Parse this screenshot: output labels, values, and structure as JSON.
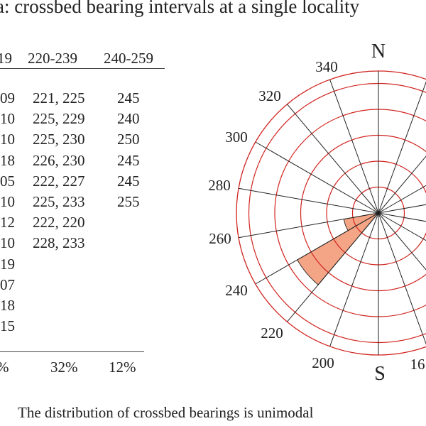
{
  "title": "a: crossbed bearing intervals at a single locality",
  "table": {
    "headers": [
      "19",
      "220-239",
      "240-259"
    ],
    "columns": [
      [
        "09",
        "10",
        "10",
        "18",
        "05",
        "10",
        "12",
        "10",
        "19",
        "07",
        "18",
        "15"
      ],
      [
        "221, 225",
        "225, 229",
        "225, 230",
        "226, 230",
        "222, 227",
        "225, 233",
        "222, 220",
        "228, 233"
      ],
      [
        "245",
        "240",
        "250",
        "245",
        "245",
        "255"
      ]
    ],
    "percentages": [
      "%",
      "32%",
      "12%"
    ]
  },
  "rose": {
    "north_label": "N",
    "south_label": "S",
    "bearing_labels": [
      "340",
      "320",
      "300",
      "280",
      "260",
      "240",
      "220",
      "200",
      "16"
    ],
    "petal_bearings": [
      "220-239",
      "240-259"
    ],
    "petal_percentages": [
      32,
      12
    ],
    "ring_color": "#d0231e",
    "spoke_color": "#222222",
    "petal_color": "#f4a585"
  },
  "caption": "The distribution of crossbed bearings is unimodal"
}
